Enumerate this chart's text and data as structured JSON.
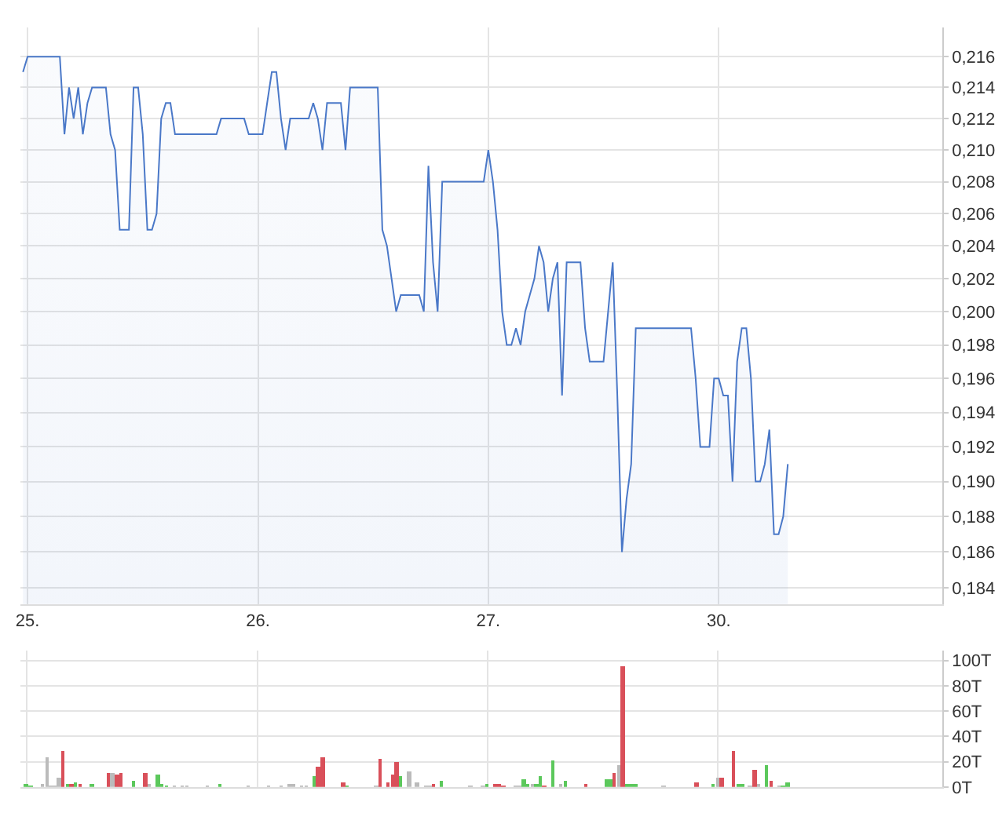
{
  "chart_data": [
    {
      "type": "area",
      "color": "#4a78c8",
      "log": true,
      "grid": true,
      "categories": [
        null,
        "25.",
        null,
        null,
        null,
        null,
        null,
        null,
        null,
        null,
        null,
        null,
        null,
        null,
        null,
        null,
        null,
        null,
        null,
        null,
        null,
        null,
        null,
        null,
        null,
        null,
        null,
        null,
        null,
        null,
        null,
        null,
        null,
        null,
        null,
        null,
        null,
        null,
        null,
        null,
        null,
        null,
        null,
        null,
        null,
        null,
        null,
        null,
        null,
        null,
        null,
        "26.",
        null,
        null,
        null,
        null,
        null,
        null,
        null,
        null,
        null,
        null,
        null,
        null,
        null,
        null,
        null,
        null,
        null,
        null,
        null,
        null,
        null,
        null,
        null,
        null,
        null,
        null,
        null,
        null,
        null,
        null,
        null,
        null,
        null,
        null,
        null,
        null,
        null,
        null,
        null,
        null,
        null,
        null,
        null,
        null,
        null,
        null,
        null,
        null,
        null,
        "27.",
        null,
        null,
        null,
        null,
        null,
        null,
        null,
        null,
        null,
        null,
        null,
        null,
        null,
        null,
        null,
        null,
        null,
        null,
        null,
        null,
        null,
        null,
        null,
        null,
        null,
        null,
        null,
        null,
        null,
        null,
        null,
        null,
        null,
        null,
        null,
        null,
        null,
        null,
        null,
        null,
        null,
        null,
        null,
        null,
        null,
        null,
        null,
        null,
        null,
        "30.",
        null,
        null,
        null,
        null,
        null,
        null,
        null,
        null,
        null,
        null,
        null,
        null,
        null,
        null,
        null,
        null,
        null,
        null,
        null,
        null,
        null,
        null,
        null,
        null,
        null,
        null,
        null,
        null,
        null,
        null,
        null,
        null,
        null,
        null,
        null,
        null,
        null,
        null,
        null,
        null,
        null,
        null,
        null,
        null,
        null,
        null,
        null,
        null
      ],
      "values": [
        0.215,
        0.216,
        0.216,
        0.216,
        0.216,
        0.216,
        0.216,
        0.216,
        0.216,
        0.211,
        0.214,
        0.212,
        0.214,
        0.211,
        0.213,
        0.214,
        0.214,
        0.214,
        0.214,
        0.211,
        0.21,
        0.205,
        0.205,
        0.205,
        0.214,
        0.214,
        0.211,
        0.205,
        0.205,
        0.206,
        0.212,
        0.213,
        0.213,
        0.211,
        0.211,
        0.211,
        0.211,
        0.211,
        0.211,
        0.211,
        0.211,
        0.211,
        0.211,
        0.212,
        0.212,
        0.212,
        0.212,
        0.212,
        0.212,
        0.211,
        0.211,
        0.211,
        0.211,
        0.213,
        0.215,
        0.215,
        0.212,
        0.21,
        0.212,
        0.212,
        0.212,
        0.212,
        0.212,
        0.213,
        0.212,
        0.21,
        0.213,
        0.213,
        0.213,
        0.213,
        0.21,
        0.214,
        0.214,
        0.214,
        0.214,
        0.214,
        0.214,
        0.214,
        0.205,
        0.204,
        0.202,
        0.2,
        0.201,
        0.201,
        0.201,
        0.201,
        0.201,
        0.2,
        0.209,
        0.203,
        0.2,
        0.208,
        0.208,
        0.208,
        0.208,
        0.208,
        0.208,
        0.208,
        0.208,
        0.208,
        0.208,
        0.21,
        0.208,
        0.205,
        0.2,
        0.198,
        0.198,
        0.199,
        0.198,
        0.2,
        0.201,
        0.202,
        0.204,
        0.203,
        0.2,
        0.202,
        0.203,
        0.195,
        0.203,
        0.203,
        0.203,
        0.203,
        0.199,
        0.197,
        0.197,
        0.197,
        0.197,
        0.2,
        0.203,
        0.195,
        0.186,
        0.189,
        0.191,
        0.199,
        0.199,
        0.199,
        0.199,
        0.199,
        0.199,
        0.199,
        0.199,
        0.199,
        0.199,
        0.199,
        0.199,
        0.199,
        0.196,
        0.192,
        0.192,
        0.192,
        0.196,
        0.196,
        0.195,
        0.195,
        0.19,
        0.197,
        0.199,
        0.199,
        0.196,
        0.19,
        0.19,
        0.191,
        0.193,
        0.187,
        0.187,
        0.188,
        0.191,
        null,
        null,
        null,
        null,
        null,
        null,
        null,
        null,
        null,
        null,
        null,
        null,
        null,
        null,
        null,
        null,
        null,
        null,
        null,
        null,
        null,
        null,
        null,
        null,
        null,
        null,
        null,
        null,
        null,
        null,
        null,
        null,
        null
      ],
      "ylim": [
        0.1831,
        0.2179
      ],
      "yticks": [
        {
          "value": 0.184,
          "label": "0,184"
        },
        {
          "value": 0.186,
          "label": "0,186"
        },
        {
          "value": 0.188,
          "label": "0,188"
        },
        {
          "value": 0.19,
          "label": "0,190"
        },
        {
          "value": 0.192,
          "label": "0,192"
        },
        {
          "value": 0.194,
          "label": "0,194"
        },
        {
          "value": 0.196,
          "label": "0,196"
        },
        {
          "value": 0.198,
          "label": "0,198"
        },
        {
          "value": 0.2,
          "label": "0,200"
        },
        {
          "value": 0.202,
          "label": "0,202"
        },
        {
          "value": 0.204,
          "label": "0,204"
        },
        {
          "value": 0.206,
          "label": "0,206"
        },
        {
          "value": 0.208,
          "label": "0,208"
        },
        {
          "value": 0.21,
          "label": "0,210"
        },
        {
          "value": 0.212,
          "label": "0,212"
        },
        {
          "value": 0.214,
          "label": "0,214"
        },
        {
          "value": 0.216,
          "label": "0,216"
        }
      ]
    },
    {
      "type": "bar",
      "grid": true,
      "tick_labels": "y",
      "categories": [
        null,
        "25.",
        null,
        null,
        null,
        null,
        null,
        null,
        null,
        null,
        null,
        null,
        null,
        null,
        null,
        null,
        null,
        null,
        null,
        null,
        null,
        null,
        null,
        null,
        null,
        null,
        null,
        null,
        null,
        null,
        null,
        null,
        null,
        null,
        null,
        null,
        null,
        null,
        null,
        null,
        null,
        null,
        null,
        null,
        null,
        null,
        null,
        null,
        null,
        null,
        null,
        null,
        null,
        null,
        null,
        null,
        null,
        "26.",
        null,
        null,
        null,
        null,
        null,
        null,
        null,
        null,
        null,
        null,
        null,
        null,
        null,
        null,
        null,
        null,
        null,
        null,
        null,
        null,
        null,
        null,
        null,
        null,
        null,
        null,
        null,
        null,
        null,
        null,
        null,
        null,
        null,
        null,
        null,
        null,
        null,
        null,
        null,
        null,
        null,
        null,
        null,
        null,
        null,
        null,
        null,
        null,
        null,
        null,
        null,
        null,
        null,
        null,
        null,
        "27.",
        null,
        null,
        null,
        null,
        null,
        null,
        null,
        null,
        null,
        null,
        null,
        null,
        null,
        null,
        null,
        null,
        null,
        null,
        null,
        null,
        null,
        null,
        null,
        null,
        null,
        null,
        null,
        null,
        null,
        null,
        null,
        null,
        null,
        null,
        null,
        null,
        null,
        null,
        null,
        null,
        null,
        null,
        null,
        null,
        null,
        null,
        null,
        null,
        null,
        null,
        null,
        null,
        null,
        null,
        null,
        "30.",
        null,
        null,
        null,
        null,
        null,
        null,
        null,
        null,
        null,
        null,
        null,
        null,
        null,
        null,
        null,
        null,
        null,
        null,
        null,
        null,
        null,
        null,
        null,
        null,
        null,
        null,
        null,
        null,
        null,
        null,
        null,
        null,
        null,
        null,
        null,
        null,
        null,
        null,
        null,
        null,
        null,
        null,
        null,
        null,
        null,
        null,
        null,
        null,
        null,
        null,
        null,
        null,
        null,
        null
      ],
      "values": [
        null,
        2,
        1,
        null,
        null,
        2,
        23,
        1,
        1,
        8,
        28,
        3,
        3,
        4,
        3,
        null,
        null,
        3,
        null,
        null,
        null,
        11,
        11,
        10,
        11,
        null,
        null,
        5,
        null,
        null,
        11,
        2,
        null,
        10,
        2,
        1,
        null,
        1,
        null,
        1,
        1,
        null,
        null,
        null,
        null,
        1,
        null,
        null,
        3,
        null,
        null,
        null,
        null,
        null,
        null,
        1,
        null,
        null,
        null,
        null,
        1,
        null,
        null,
        1,
        null,
        2,
        2,
        null,
        1,
        1,
        null,
        9,
        16,
        24,
        null,
        null,
        null,
        null,
        4,
        1,
        null,
        null,
        null,
        null,
        null,
        null,
        1,
        22,
        null,
        4,
        10,
        20,
        9,
        null,
        13,
        null,
        4,
        null,
        1,
        1,
        2,
        null,
        5,
        null,
        null,
        null,
        null,
        null,
        null,
        1,
        null,
        null,
        1,
        2,
        null,
        2,
        2,
        1,
        null,
        null,
        1,
        1,
        6,
        3,
        2,
        2,
        9,
        1,
        null,
        21,
        null,
        2,
        5,
        null,
        null,
        null,
        null,
        3,
        null,
        null,
        null,
        null,
        6,
        6,
        11,
        17,
        95,
        2,
        2,
        2,
        null,
        null,
        null,
        null,
        null,
        null,
        1,
        null,
        null,
        null,
        null,
        null,
        null,
        null,
        4,
        null,
        null,
        null,
        3,
        8,
        7,
        null,
        null,
        28,
        3,
        3,
        null,
        1,
        14,
        2,
        null,
        17,
        5,
        null,
        1,
        1,
        4,
        null,
        null,
        null,
        null,
        null,
        null,
        null,
        null,
        null,
        null,
        null,
        null,
        null,
        null,
        null,
        null,
        null,
        null,
        null,
        null,
        null,
        null,
        null,
        null,
        null,
        null,
        null,
        null,
        null,
        null,
        null,
        null,
        null,
        null,
        null,
        null,
        null
      ],
      "colors": [
        null,
        "#5cc85c",
        "#5cc85c",
        null,
        null,
        "#bbbbbb",
        "#bbbbbb",
        "#bbbbbb",
        "#bbbbbb",
        "#bbbbbb",
        "#d9505a",
        "#5cc85c",
        "#d9505a",
        "#5cc85c",
        "#d9505a",
        null,
        null,
        "#5cc85c",
        null,
        null,
        null,
        "#d9505a",
        "#bbbbbb",
        "#d9505a",
        "#d9505a",
        null,
        null,
        "#5cc85c",
        null,
        null,
        "#d9505a",
        "#bbbbbb",
        null,
        "#5cc85c",
        "#5cc85c",
        "#5cc85c",
        null,
        "#bbbbbb",
        null,
        "#bbbbbb",
        "#bbbbbb",
        null,
        null,
        null,
        null,
        "#bbbbbb",
        null,
        null,
        "#5cc85c",
        null,
        null,
        null,
        null,
        null,
        null,
        "#bbbbbb",
        null,
        null,
        null,
        null,
        "#bbbbbb",
        null,
        null,
        "#bbbbbb",
        null,
        "#bbbbbb",
        "#bbbbbb",
        null,
        "#bbbbbb",
        "#bbbbbb",
        null,
        "#5cc85c",
        "#d9505a",
        "#d9505a",
        null,
        null,
        null,
        null,
        "#d9505a",
        "#5cc85c",
        null,
        null,
        null,
        null,
        null,
        null,
        "#bbbbbb",
        "#d9505a",
        null,
        "#d9505a",
        "#d9505a",
        "#d9505a",
        "#5cc85c",
        null,
        "#bbbbbb",
        null,
        "#bbbbbb",
        null,
        "#bbbbbb",
        "#bbbbbb",
        "#d9505a",
        null,
        "#5cc85c",
        null,
        null,
        null,
        null,
        null,
        null,
        "#bbbbbb",
        null,
        null,
        "#bbbbbb",
        "#5cc85c",
        null,
        "#d9505a",
        "#d9505a",
        "#d9505a",
        null,
        null,
        "#bbbbbb",
        "#bbbbbb",
        "#5cc85c",
        "#5cc85c",
        "#bbbbbb",
        "#5cc85c",
        "#5cc85c",
        "#d9505a",
        null,
        "#5cc85c",
        null,
        "#bbbbbb",
        "#5cc85c",
        null,
        null,
        null,
        null,
        "#d9505a",
        null,
        null,
        null,
        null,
        "#5cc85c",
        "#5cc85c",
        "#d9505a",
        "#bbbbbb",
        "#d9505a",
        "#5cc85c",
        "#5cc85c",
        "#5cc85c",
        null,
        null,
        null,
        null,
        null,
        null,
        "#bbbbbb",
        null,
        null,
        null,
        null,
        null,
        null,
        null,
        "#d9505a",
        null,
        null,
        null,
        "#5cc85c",
        "#bbbbbb",
        "#d9505a",
        null,
        null,
        "#d9505a",
        "#5cc85c",
        "#5cc85c",
        null,
        "#bbbbbb",
        "#d9505a",
        "#bbbbbb",
        null,
        "#5cc85c",
        "#d9505a",
        null,
        "#bbbbbb",
        "#5cc85c",
        "#5cc85c",
        null,
        null,
        null,
        null,
        null,
        null,
        null,
        null,
        null,
        null,
        null,
        null,
        null,
        null,
        null,
        null,
        null,
        null,
        null,
        null,
        null,
        null,
        null,
        null,
        null,
        null,
        null,
        null,
        null,
        null,
        null,
        null,
        null,
        null,
        null,
        null,
        null
      ],
      "ylim": [
        0,
        108
      ],
      "yticks": [
        {
          "value": 0,
          "label": "0T"
        },
        {
          "value": 20,
          "label": "20T"
        },
        {
          "value": 40,
          "label": "40T"
        },
        {
          "value": 60,
          "label": "60T"
        },
        {
          "value": 80,
          "label": "80T"
        },
        {
          "value": 100,
          "label": "100T"
        }
      ]
    }
  ]
}
